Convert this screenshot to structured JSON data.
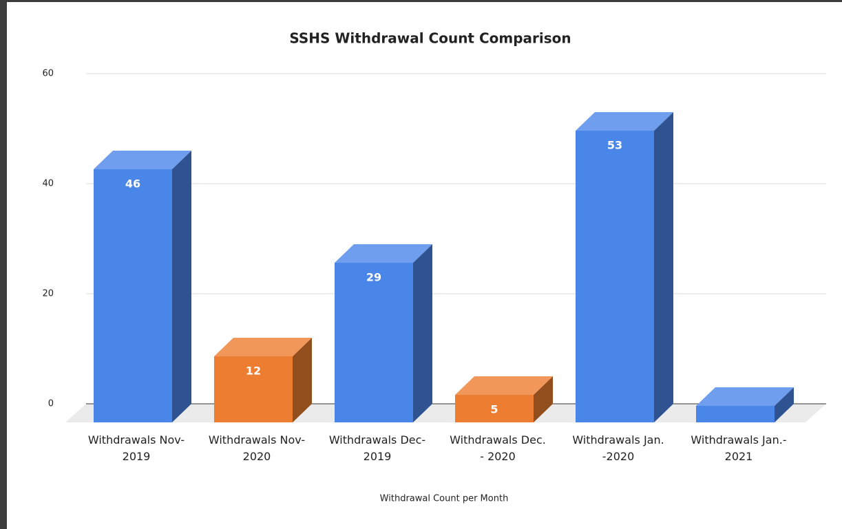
{
  "chart_data": {
    "type": "bar3d",
    "title": "SSHS Withdrawal Count Comparison",
    "x_label": "Withdrawal Count per Month",
    "categories": [
      "Withdrawals Nov-\n2019",
      "Withdrawals Nov-\n2020",
      "Withdrawals Dec-\n2019",
      "Withdrawals Dec.\n- 2020",
      "Withdrawals Jan.\n-2020",
      "Withdrawals Jan.-\n2021"
    ],
    "values": [
      46,
      12,
      29,
      5,
      53,
      3
    ],
    "value_labels": [
      "46",
      "12",
      "29",
      "5",
      "53",
      null
    ],
    "colors": [
      "#4a86e8",
      "#ed7d31",
      "#4a86e8",
      "#ed7d31",
      "#4a86e8",
      "#4a86e8"
    ],
    "ylim": [
      0,
      60
    ],
    "yticks": [
      0,
      20,
      40,
      60
    ],
    "grid": true
  }
}
